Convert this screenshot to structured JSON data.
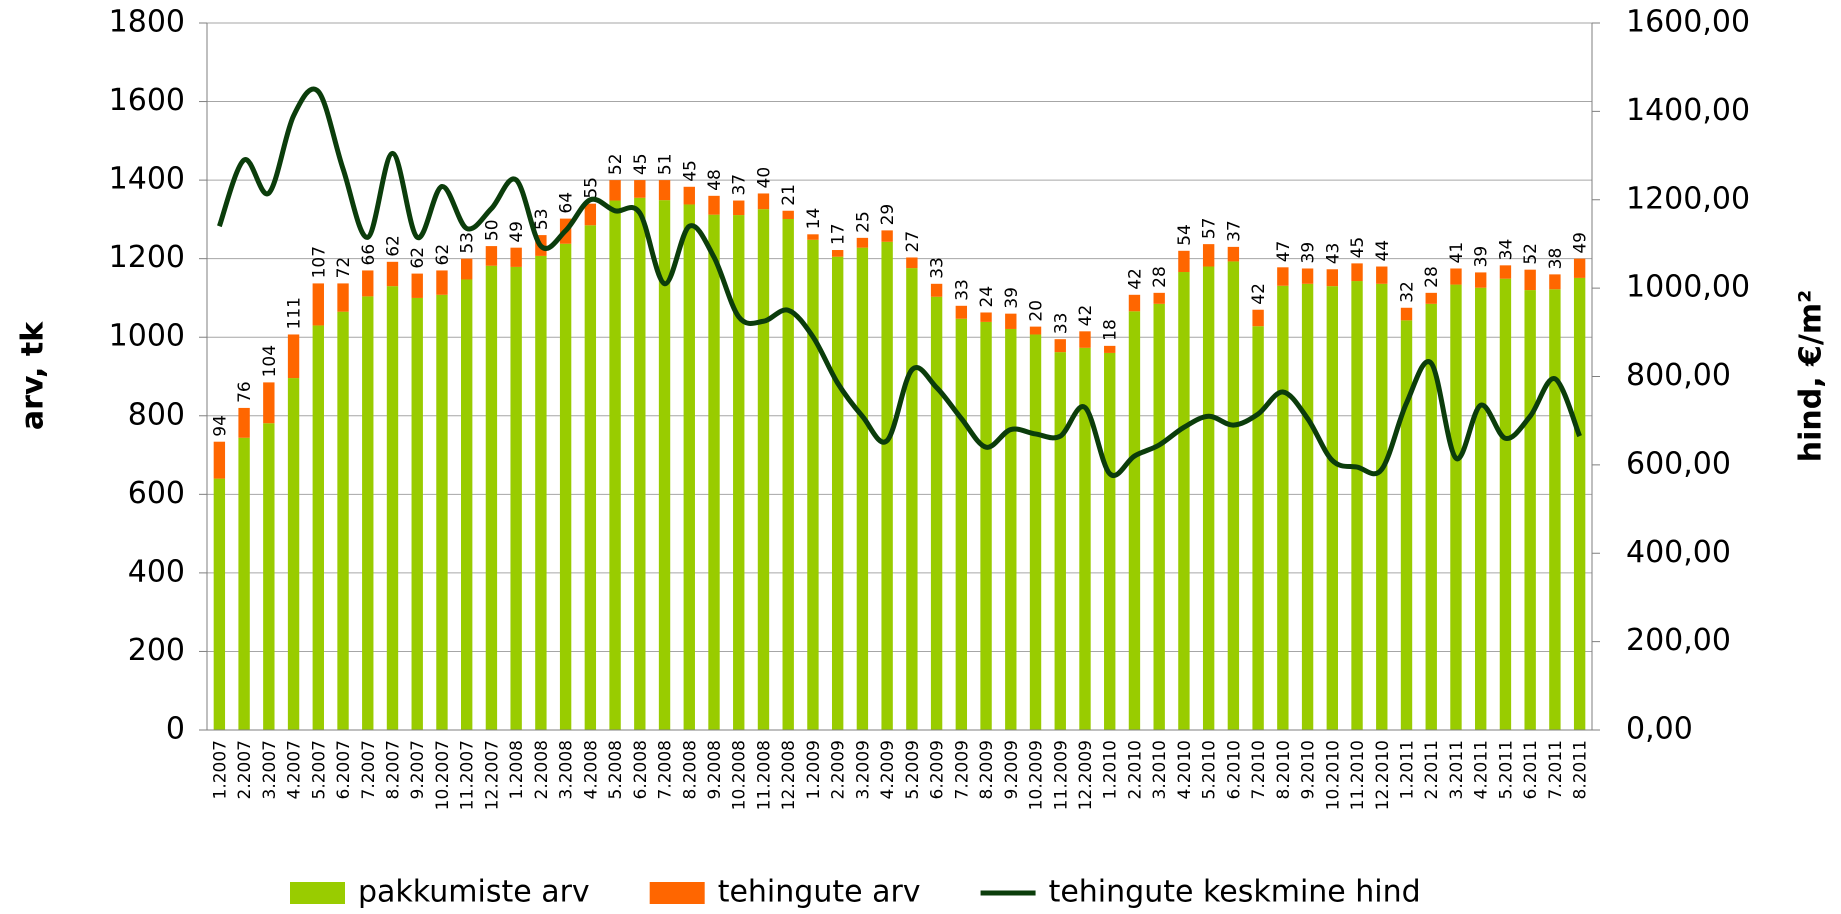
{
  "chart_data": {
    "type": "bar",
    "stacked": true,
    "y_label": "arv, tk",
    "y2_label": "hind, €/m²",
    "categories": [
      "1.2007",
      "2.2007",
      "3.2007",
      "4.2007",
      "5.2007",
      "6.2007",
      "7.2007",
      "8.2007",
      "9.2007",
      "10.2007",
      "11.2007",
      "12.2007",
      "1.2008",
      "2.2008",
      "3.2008",
      "4.2008",
      "5.2008",
      "6.2008",
      "7.2008",
      "8.2008",
      "9.2008",
      "10.2008",
      "11.2008",
      "12.2008",
      "1.2009",
      "2.2009",
      "3.2009",
      "4.2009",
      "5.2009",
      "6.2009",
      "7.2009",
      "8.2009",
      "9.2009",
      "10.2009",
      "11.2009",
      "12.2009",
      "1.2010",
      "2.2010",
      "3.2010",
      "4.2010",
      "5.2010",
      "6.2010",
      "7.2010",
      "8.2010",
      "9.2010",
      "10.2010",
      "11.2010",
      "12.2010",
      "1.2011",
      "2.2011",
      "3.2011",
      "4.2011",
      "5.2011",
      "6.2011",
      "7.2011",
      "8.2011"
    ],
    "series": [
      {
        "name": "pakkumiste arv",
        "type": "bar",
        "color": "#99cc00",
        "values": [
          640,
          744,
          781,
          896,
          1030,
          1065,
          1104,
          1130,
          1100,
          1108,
          1147,
          1182,
          1179,
          1207,
          1238,
          1285,
          1348,
          1355,
          1349,
          1338,
          1312,
          1311,
          1326,
          1301,
          1248,
          1205,
          1228,
          1243,
          1176,
          1103,
          1047,
          1039,
          1021,
          1007,
          962,
          973,
          960,
          1066,
          1085,
          1166,
          1180,
          1193,
          1028,
          1131,
          1136,
          1130,
          1143,
          1136,
          1043,
          1085,
          1134,
          1126,
          1149,
          1120,
          1122,
          1151
        ]
      },
      {
        "name": "tehingute arv",
        "type": "bar",
        "color": "#ff6600",
        "data_labels": true,
        "values": [
          94,
          76,
          104,
          111,
          107,
          72,
          66,
          62,
          62,
          62,
          53,
          50,
          49,
          53,
          64,
          55,
          52,
          45,
          51,
          45,
          48,
          37,
          40,
          21,
          14,
          17,
          25,
          29,
          27,
          33,
          33,
          24,
          39,
          20,
          33,
          42,
          18,
          42,
          28,
          54,
          57,
          37,
          42,
          47,
          39,
          43,
          45,
          44,
          32,
          28,
          41,
          39,
          34,
          52,
          38,
          49
        ]
      },
      {
        "name": "tehingute keskmine hind",
        "type": "line",
        "axis": "y2",
        "color": "#0b3d0b",
        "values": [
          1140,
          1290,
          1215,
          1390,
          1445,
          1270,
          1115,
          1305,
          1115,
          1230,
          1135,
          1180,
          1245,
          1095,
          1130,
          1200,
          1175,
          1170,
          1010,
          1140,
          1070,
          935,
          925,
          950,
          890,
          785,
          710,
          655,
          815,
          775,
          705,
          640,
          680,
          670,
          665,
          730,
          580,
          620,
          645,
          685,
          710,
          690,
          715,
          765,
          705,
          610,
          595,
          590,
          740,
          830,
          615,
          735,
          660,
          710,
          795,
          665
        ]
      }
    ],
    "ylim": [
      0,
      1800
    ],
    "yticks": [
      0,
      200,
      400,
      600,
      800,
      1000,
      1200,
      1400,
      1600,
      1800
    ],
    "y2lim": [
      0,
      1600
    ],
    "y2ticks": [
      {
        "value": 0,
        "label": "0,00"
      },
      {
        "value": 200,
        "label": "200,00"
      },
      {
        "value": 400,
        "label": "400,00"
      },
      {
        "value": 600,
        "label": "600,00"
      },
      {
        "value": 800,
        "label": "800,00"
      },
      {
        "value": 1000,
        "label": "1000,00"
      },
      {
        "value": 1200,
        "label": "1200,00"
      },
      {
        "value": 1400,
        "label": "1400,00"
      },
      {
        "value": 1600,
        "label": "1600,00"
      }
    ],
    "grid": true,
    "legend": "bottom"
  }
}
